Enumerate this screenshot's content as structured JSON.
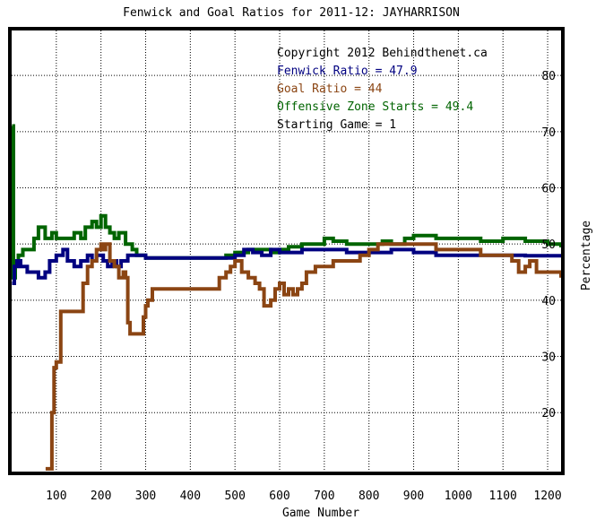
{
  "chart_data": {
    "type": "line",
    "title": "Fenwick and Goal Ratios for 2011-12: JAYHARRISON",
    "xlabel": "Game Number",
    "ylabel": "Percentage",
    "xlim": [
      0,
      1230
    ],
    "ylim": [
      9.5,
      88
    ],
    "x_ticks": [
      100,
      200,
      300,
      400,
      500,
      600,
      700,
      800,
      900,
      1000,
      1100,
      1200
    ],
    "y_ticks": [
      20,
      30,
      40,
      50,
      60,
      70,
      80
    ],
    "grid": true,
    "annotations": [
      {
        "text": "Copyright 2012 Behindthenet.ca",
        "color": "#000000"
      },
      {
        "text": "Fenwick Ratio = 47.9",
        "color": "#000080"
      },
      {
        "text": "Goal Ratio = 44",
        "color": "#8B4513"
      },
      {
        "text": "Offensive Zone Starts = 49.4",
        "color": "#006400"
      },
      {
        "text": "Starting Game = 1",
        "color": "#000000"
      }
    ],
    "series": [
      {
        "name": "Offensive Zone Starts",
        "color": "#006400",
        "points": [
          [
            1,
            71
          ],
          [
            4,
            44
          ],
          [
            8,
            47
          ],
          [
            15,
            48
          ],
          [
            25,
            49
          ],
          [
            40,
            49
          ],
          [
            50,
            51
          ],
          [
            60,
            53
          ],
          [
            75,
            51
          ],
          [
            90,
            52
          ],
          [
            100,
            51
          ],
          [
            120,
            51
          ],
          [
            140,
            52
          ],
          [
            155,
            51
          ],
          [
            165,
            53
          ],
          [
            180,
            54
          ],
          [
            190,
            53
          ],
          [
            200,
            55
          ],
          [
            210,
            53
          ],
          [
            220,
            52
          ],
          [
            230,
            51
          ],
          [
            240,
            52
          ],
          [
            255,
            50
          ],
          [
            270,
            49
          ],
          [
            280,
            48
          ],
          [
            300,
            47.5
          ],
          [
            350,
            47.5
          ],
          [
            400,
            47.5
          ],
          [
            450,
            47.5
          ],
          [
            480,
            48
          ],
          [
            500,
            48.5
          ],
          [
            530,
            49
          ],
          [
            560,
            49
          ],
          [
            580,
            48.5
          ],
          [
            600,
            49
          ],
          [
            620,
            49.5
          ],
          [
            650,
            50
          ],
          [
            680,
            50
          ],
          [
            700,
            51
          ],
          [
            720,
            50.5
          ],
          [
            750,
            50
          ],
          [
            800,
            50
          ],
          [
            830,
            50.5
          ],
          [
            850,
            50
          ],
          [
            880,
            51
          ],
          [
            900,
            51.5
          ],
          [
            950,
            51
          ],
          [
            1000,
            51
          ],
          [
            1050,
            50.5
          ],
          [
            1100,
            51
          ],
          [
            1150,
            50.5
          ],
          [
            1200,
            50
          ],
          [
            1230,
            49.4
          ]
        ]
      },
      {
        "name": "Fenwick Ratio",
        "color": "#000080",
        "points": [
          [
            1,
            43
          ],
          [
            6,
            46
          ],
          [
            12,
            47
          ],
          [
            20,
            46
          ],
          [
            35,
            45
          ],
          [
            45,
            45
          ],
          [
            60,
            44
          ],
          [
            75,
            45
          ],
          [
            85,
            47
          ],
          [
            100,
            48
          ],
          [
            115,
            49
          ],
          [
            125,
            47
          ],
          [
            140,
            46
          ],
          [
            155,
            47
          ],
          [
            170,
            48
          ],
          [
            180,
            47
          ],
          [
            190,
            48
          ],
          [
            205,
            47
          ],
          [
            215,
            46
          ],
          [
            225,
            47
          ],
          [
            235,
            46
          ],
          [
            245,
            47
          ],
          [
            260,
            48
          ],
          [
            275,
            48
          ],
          [
            300,
            47.5
          ],
          [
            350,
            47.5
          ],
          [
            400,
            47.5
          ],
          [
            450,
            47.5
          ],
          [
            480,
            47.5
          ],
          [
            500,
            48
          ],
          [
            520,
            49
          ],
          [
            540,
            48.5
          ],
          [
            560,
            48
          ],
          [
            580,
            49
          ],
          [
            600,
            48.5
          ],
          [
            650,
            49
          ],
          [
            700,
            49
          ],
          [
            750,
            48.5
          ],
          [
            800,
            48.5
          ],
          [
            850,
            49
          ],
          [
            900,
            48.5
          ],
          [
            950,
            48
          ],
          [
            1000,
            48
          ],
          [
            1050,
            48
          ],
          [
            1100,
            48
          ],
          [
            1150,
            47.9
          ],
          [
            1200,
            47.9
          ],
          [
            1230,
            47.9
          ]
        ]
      },
      {
        "name": "Goal Ratio",
        "color": "#8B4513",
        "points": [
          [
            76,
            10
          ],
          [
            90,
            20
          ],
          [
            95,
            28
          ],
          [
            100,
            29
          ],
          [
            110,
            38
          ],
          [
            150,
            38
          ],
          [
            160,
            43
          ],
          [
            170,
            46
          ],
          [
            180,
            47
          ],
          [
            190,
            49
          ],
          [
            200,
            50
          ],
          [
            205,
            49
          ],
          [
            210,
            50
          ],
          [
            220,
            47
          ],
          [
            230,
            46
          ],
          [
            240,
            44
          ],
          [
            250,
            45
          ],
          [
            255,
            44
          ],
          [
            260,
            36
          ],
          [
            265,
            34
          ],
          [
            290,
            34
          ],
          [
            295,
            37
          ],
          [
            300,
            39
          ],
          [
            305,
            40
          ],
          [
            315,
            42
          ],
          [
            330,
            42
          ],
          [
            400,
            42
          ],
          [
            430,
            42
          ],
          [
            440,
            42
          ],
          [
            450,
            42
          ],
          [
            465,
            44
          ],
          [
            480,
            45
          ],
          [
            490,
            46
          ],
          [
            500,
            47
          ],
          [
            515,
            45
          ],
          [
            530,
            44
          ],
          [
            545,
            43
          ],
          [
            555,
            42
          ],
          [
            565,
            39
          ],
          [
            580,
            40
          ],
          [
            590,
            42
          ],
          [
            600,
            43
          ],
          [
            610,
            41
          ],
          [
            620,
            42
          ],
          [
            630,
            41
          ],
          [
            640,
            42
          ],
          [
            650,
            43
          ],
          [
            660,
            45
          ],
          [
            680,
            46
          ],
          [
            700,
            46
          ],
          [
            720,
            47
          ],
          [
            750,
            47
          ],
          [
            780,
            48
          ],
          [
            800,
            49
          ],
          [
            820,
            50
          ],
          [
            850,
            50
          ],
          [
            880,
            50
          ],
          [
            900,
            50
          ],
          [
            950,
            49
          ],
          [
            1000,
            49
          ],
          [
            1050,
            48
          ],
          [
            1080,
            48
          ],
          [
            1100,
            48
          ],
          [
            1120,
            47
          ],
          [
            1135,
            45
          ],
          [
            1145,
            45
          ],
          [
            1150,
            46
          ],
          [
            1160,
            47
          ],
          [
            1175,
            45
          ],
          [
            1200,
            45
          ],
          [
            1230,
            44
          ]
        ]
      }
    ]
  }
}
